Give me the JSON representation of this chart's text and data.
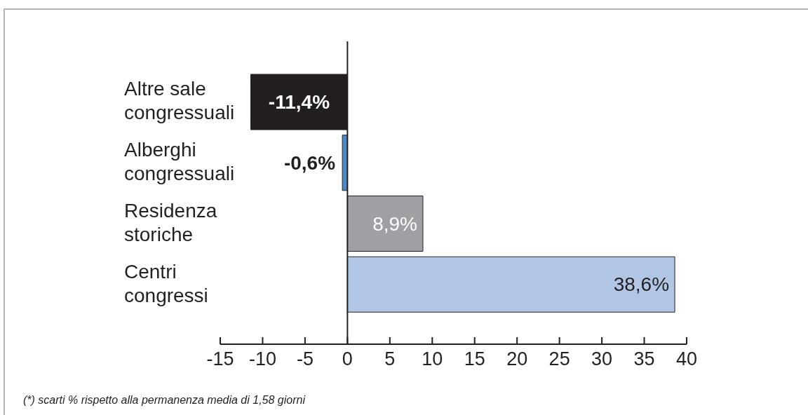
{
  "chart_data": {
    "type": "bar",
    "orientation": "horizontal",
    "categories": [
      "Altre sale congressuali",
      "Alberghi congressuali",
      "Residenza storiche",
      "Centri congressi"
    ],
    "values": [
      -11.4,
      -0.6,
      8.9,
      38.6
    ],
    "colors": [
      "#231f20",
      "#4f88c9",
      "#9fa0a3",
      "#b1c6e5"
    ],
    "value_labels": [
      "-11,4%",
      "-0,6%",
      "8,9%",
      "38,6%"
    ],
    "xlim": [
      -15,
      40
    ],
    "xticks": [
      -15,
      -10,
      -5,
      0,
      5,
      10,
      15,
      20,
      25,
      30,
      35,
      40
    ],
    "annotations": [
      "(*) scarti % rispetto alla permanenza media di 1,58 giorni"
    ]
  }
}
